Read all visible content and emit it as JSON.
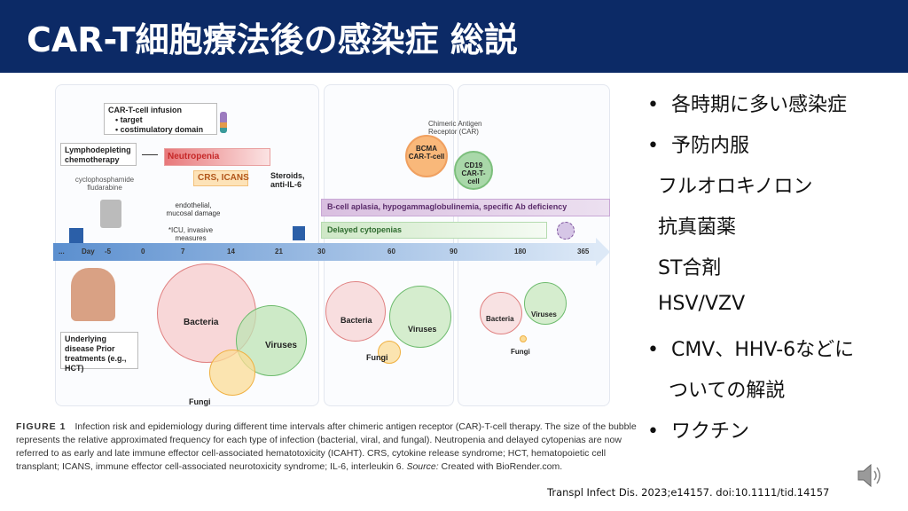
{
  "title": "CAR-T細胞療法後の感染症 総説",
  "figure": {
    "infusion_box": {
      "title": "CAR-T-cell infusion",
      "items": [
        "target",
        "costimulatory domain"
      ]
    },
    "lympho": "Lymphodepleting chemotherapy",
    "drugs": "cyclophosphamide fludarabine",
    "neutropenia": "Neutropenia",
    "crs": "CRS, ICANS",
    "steroids": "Steroids, anti-IL-6",
    "damage": "endothelial, mucosal damage",
    "icu": "*ICU, invasive measures",
    "car_label": "Chimeric Antigen Receptor (CAR)",
    "bcma": "BCMA CAR-T-cell",
    "cd19": "CD19 CAR-T-cell",
    "bcell": "B-cell aplasia, hypogammaglobulinemia, specific Ab deficiency",
    "delayed": "Delayed cytopenias",
    "ticks": [
      "...",
      "Day",
      "-5",
      "0",
      "7",
      "14",
      "21",
      "30",
      "60",
      "90",
      "180",
      "365"
    ],
    "underlying": "Underlying disease Prior treatments (e.g., HCT)",
    "bacteria": "Bacteria",
    "viruses": "Viruses",
    "fungi": "Fungi",
    "colors": {
      "bacteria": "#f7d3d3",
      "viruses": "#cdeac5",
      "fungi": "#fbe0a0",
      "neutropenia": "#e8787a",
      "crs": "#fde3b8",
      "bcell": "#d9bfe0",
      "delayed": "#cfe8c7",
      "timeline": "#5b8fcf"
    }
  },
  "caption": {
    "label": "FIGURE 1",
    "text": "Infection risk and epidemiology during different time intervals after chimeric antigen receptor (CAR)-T-cell therapy. The size of the bubble represents the relative approximated frequency for each type of infection (bacterial, viral, and fungal). Neutropenia and delayed cytopenias are now referred to as early and late immune effector cell-associated hematotoxicity (ICAHT). CRS, cytokine release syndrome; HCT, hematopoietic cell transplant; ICANS, immune effector cell-associated neurotoxicity syndrome; IL-6, interleukin 6.",
    "source_label": "Source:",
    "source": "Created with BioRender.com."
  },
  "bullets": [
    {
      "text": "各時期に多い感染症",
      "bullet": true
    },
    {
      "text": "予防内服",
      "bullet": true
    },
    {
      "text": "フルオロキノロン",
      "bullet": false
    },
    {
      "text": "抗真菌薬",
      "bullet": false
    },
    {
      "text": "ST合剤",
      "bullet": false
    },
    {
      "text": "HSV/VZV",
      "bullet": false
    },
    {
      "text": "CMV、HHV-6などに",
      "bullet": true
    },
    {
      "text": "ついての解説",
      "bullet": false
    },
    {
      "text": "ワクチン",
      "bullet": true
    }
  ],
  "citation": "Transpl Infect Dis. 2023;e14157. doi:10.1111/tid.14157"
}
